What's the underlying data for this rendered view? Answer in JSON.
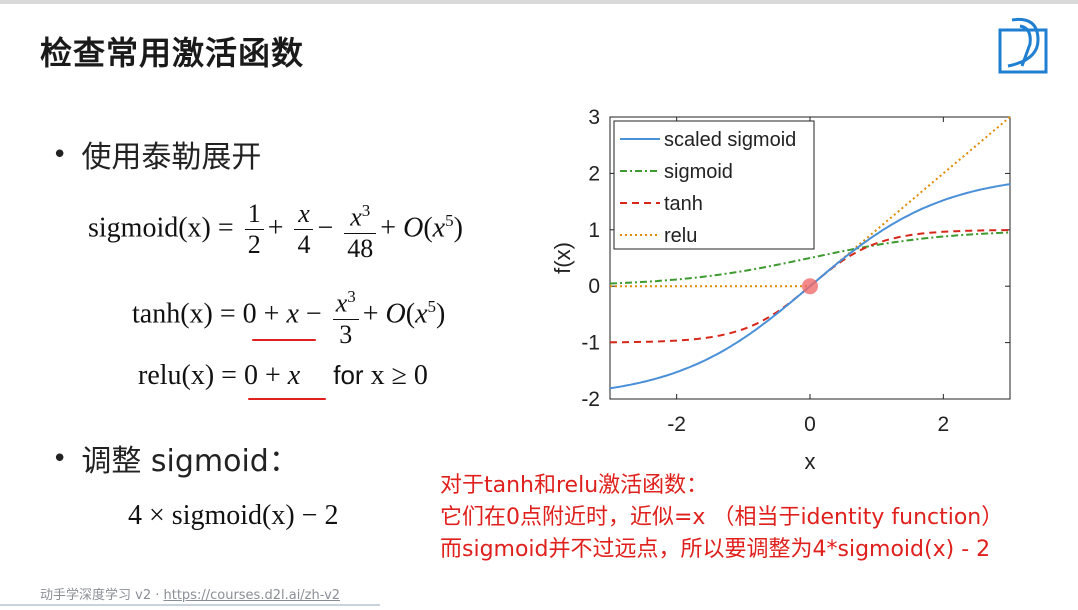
{
  "slide": {
    "title": "检查常用激活函数",
    "bullet1": "使用泰勒展开",
    "bullet2": "调整 sigmoid：",
    "bullet_dot": "•"
  },
  "equations": {
    "sigmoid_lhs": "sigmoid(x) =",
    "tanh_lhs": "tanh(x) =",
    "relu_lhs": "relu(x) =",
    "relu_condition_word": "for",
    "relu_condition": "x ≥ 0",
    "adjusted": "4 × sigmoid(x) − 2"
  },
  "note": {
    "line1": "对于tanh和relu激活函数：",
    "line2": "它们在0点附近时，近似=x  （相当于identity function）",
    "line3": "而sigmoid并不过远点，所以要调整为4*sigmoid(x) - 2"
  },
  "footer": {
    "text": "动手学深度学习 v2 · ",
    "link": "https://courses.d2l.ai/zh-v2"
  },
  "colors": {
    "note": "#e0201c",
    "scaled_sigmoid": "#4a90d9",
    "sigmoid": "#3c9a2e",
    "tanh": "#d62718",
    "relu": "#e08a00",
    "marker": "#f06a6a",
    "logo": "#1f7fd0"
  },
  "logo_icon": "d2l-logo-icon",
  "chart_data": {
    "type": "line",
    "xlabel": "x",
    "ylabel": "f(x)",
    "xlim": [
      -3,
      3
    ],
    "ylim": [
      -2,
      3
    ],
    "xticks": [
      -2,
      0,
      2
    ],
    "yticks": [
      -2,
      -1,
      0,
      1,
      2,
      3
    ],
    "grid": false,
    "legend_position": "top-left",
    "marker": {
      "x": 0,
      "y": 0
    },
    "series": [
      {
        "name": "scaled sigmoid",
        "style": "solid",
        "x": [
          -3,
          -2.5,
          -2,
          -1.5,
          -1,
          -0.5,
          0,
          0.5,
          1,
          1.5,
          2,
          2.5,
          3
        ],
        "y": [
          -1.81,
          -1.7,
          -1.52,
          -1.27,
          -0.92,
          -0.49,
          0,
          0.49,
          0.92,
          1.27,
          1.52,
          1.7,
          1.81
        ]
      },
      {
        "name": "sigmoid",
        "style": "dashdot",
        "x": [
          -3,
          -2.5,
          -2,
          -1.5,
          -1,
          -0.5,
          0,
          0.5,
          1,
          1.5,
          2,
          2.5,
          3
        ],
        "y": [
          0.05,
          0.08,
          0.12,
          0.18,
          0.27,
          0.38,
          0.5,
          0.62,
          0.73,
          0.82,
          0.88,
          0.92,
          0.95
        ]
      },
      {
        "name": "tanh",
        "style": "dashed",
        "x": [
          -3,
          -2.5,
          -2,
          -1.5,
          -1,
          -0.5,
          0,
          0.5,
          1,
          1.5,
          2,
          2.5,
          3
        ],
        "y": [
          -0.995,
          -0.987,
          -0.964,
          -0.905,
          -0.762,
          -0.462,
          0,
          0.462,
          0.762,
          0.905,
          0.964,
          0.987,
          0.995
        ]
      },
      {
        "name": "relu",
        "style": "dotted",
        "x": [
          -3,
          0,
          3
        ],
        "y": [
          0,
          0,
          3
        ]
      }
    ]
  }
}
